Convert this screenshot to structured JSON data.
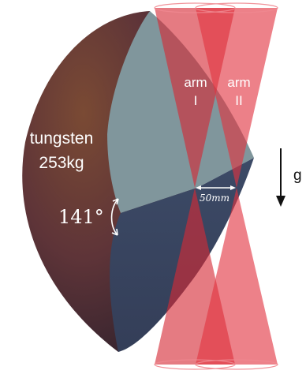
{
  "material": {
    "name": "tungsten",
    "mass": "253kg"
  },
  "angle": {
    "value": "141°"
  },
  "arms": [
    {
      "word": "arm",
      "numeral": "I"
    },
    {
      "word": "arm",
      "numeral": "II"
    }
  ],
  "separation": {
    "label": "50mm"
  },
  "gravity": {
    "label": "g"
  },
  "colors": {
    "cone_red": "#e0303a",
    "plane_light": "#7f959b",
    "plane_dark": "#3a4660",
    "sphere_brown": "#6b3c33"
  }
}
